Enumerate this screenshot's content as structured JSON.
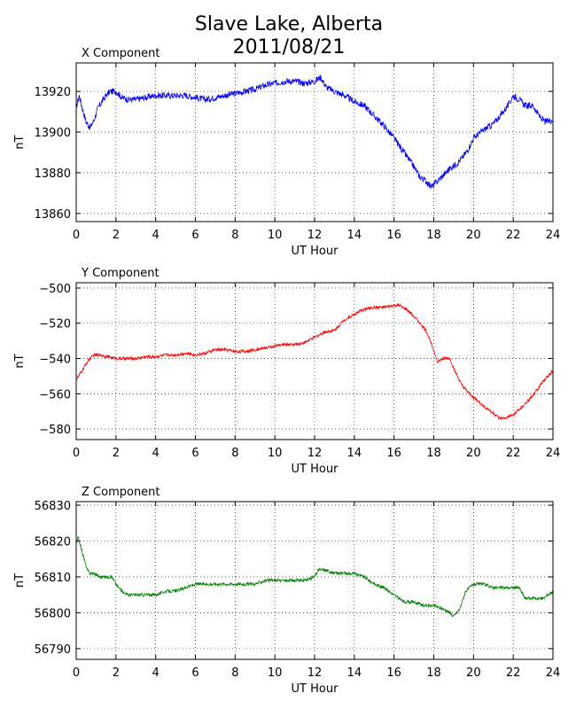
{
  "figure": {
    "title_line1": "Slave Lake, Alberta",
    "title_line2": "2011/08/21"
  },
  "chart_data": [
    {
      "type": "line",
      "title": "X Component",
      "xlabel": "UT Hour",
      "ylabel": "nT",
      "xlim": [
        0,
        24
      ],
      "ylim": [
        13856,
        13934
      ],
      "xticks": [
        0,
        2,
        4,
        6,
        8,
        10,
        12,
        14,
        16,
        18,
        20,
        22,
        24
      ],
      "yticks": [
        13860,
        13880,
        13900,
        13920
      ],
      "grid": true,
      "color": "#0000ff",
      "noise": 1.6,
      "series": [
        {
          "x": [
            0,
            0.15,
            0.3,
            0.5,
            0.7,
            0.9,
            1.1,
            1.3,
            1.5,
            1.7,
            2.0,
            2.3,
            2.6,
            3.0,
            3.5,
            4.0,
            4.5,
            5.0,
            5.5,
            6.0,
            6.5,
            7.0,
            7.5,
            8.0,
            8.5,
            9.0,
            9.5,
            10.0,
            10.5,
            11.0,
            11.5,
            12.0,
            12.3,
            12.6,
            13.0,
            13.5,
            14.0,
            14.5,
            15.0,
            15.5,
            16.0,
            16.5,
            17.0,
            17.3,
            17.6,
            17.9,
            18.2,
            18.5,
            18.8,
            19.1,
            19.4,
            19.7,
            20.0,
            20.5,
            21.0,
            21.5,
            21.8,
            22.0,
            22.3,
            22.6,
            23.0,
            23.3,
            23.6,
            24.0
          ],
          "values": [
            13912,
            13918,
            13912,
            13905,
            13902,
            13906,
            13912,
            13915,
            13918,
            13920,
            13920,
            13917,
            13916,
            13916,
            13917,
            13918,
            13918,
            13918,
            13918,
            13917,
            13916,
            13917,
            13918,
            13919,
            13920,
            13921,
            13923,
            13924,
            13925,
            13925,
            13924,
            13925,
            13927,
            13922,
            13920,
            13918,
            13915,
            13913,
            13908,
            13903,
            13897,
            13890,
            13883,
            13878,
            13876,
            13873,
            13876,
            13879,
            13882,
            13884,
            13887,
            13891,
            13897,
            13901,
            13904,
            13910,
            13914,
            13918,
            13916,
            13913,
            13913,
            13908,
            13905,
            13906
          ]
        }
      ]
    },
    {
      "type": "line",
      "title": "Y Component",
      "xlabel": "UT Hour",
      "ylabel": "nT",
      "xlim": [
        0,
        24
      ],
      "ylim": [
        -586,
        -497
      ],
      "xticks": [
        0,
        2,
        4,
        6,
        8,
        10,
        12,
        14,
        16,
        18,
        20,
        22,
        24
      ],
      "yticks": [
        -580,
        -560,
        -540,
        -520,
        -500
      ],
      "grid": true,
      "color": "#ff0000",
      "noise": 0.9,
      "series": [
        {
          "x": [
            0,
            0.3,
            0.6,
            0.9,
            1.2,
            1.6,
            2.0,
            2.5,
            3.0,
            3.5,
            4.0,
            4.5,
            5.0,
            5.5,
            6.0,
            6.5,
            7.0,
            7.5,
            8.0,
            8.5,
            9.0,
            9.5,
            10.0,
            10.5,
            11.0,
            11.5,
            12.0,
            12.5,
            13.0,
            13.5,
            14.0,
            14.5,
            15.0,
            15.5,
            16.0,
            16.3,
            16.6,
            17.0,
            17.3,
            17.6,
            17.9,
            18.2,
            18.5,
            18.8,
            19.1,
            19.4,
            19.7,
            20.0,
            20.5,
            21.0,
            21.3,
            21.6,
            22.0,
            22.5,
            23.0,
            23.5,
            24.0
          ],
          "values": [
            -552,
            -547,
            -541,
            -538,
            -538,
            -539,
            -540,
            -540,
            -540,
            -539,
            -539,
            -538,
            -538,
            -537,
            -538,
            -537,
            -535,
            -535,
            -536,
            -536,
            -535,
            -534,
            -533,
            -532,
            -532,
            -531,
            -528,
            -525,
            -524,
            -518,
            -515,
            -512,
            -511,
            -511,
            -510,
            -510,
            -512,
            -516,
            -520,
            -524,
            -532,
            -542,
            -540,
            -540,
            -548,
            -555,
            -559,
            -562,
            -567,
            -571,
            -574,
            -574,
            -572,
            -567,
            -561,
            -553,
            -547
          ]
        }
      ]
    },
    {
      "type": "line",
      "title": "Z Component",
      "xlabel": "UT Hour",
      "ylabel": "nT",
      "xlim": [
        0,
        24
      ],
      "ylim": [
        56787,
        56831
      ],
      "xticks": [
        0,
        2,
        4,
        6,
        8,
        10,
        12,
        14,
        16,
        18,
        20,
        22,
        24
      ],
      "yticks": [
        56790,
        56800,
        56810,
        56820,
        56830
      ],
      "grid": true,
      "color": "#008000",
      "noise": 0.45,
      "series": [
        {
          "x": [
            0,
            0.1,
            0.25,
            0.4,
            0.55,
            0.7,
            0.9,
            1.2,
            1.5,
            1.8,
            2.0,
            2.3,
            2.6,
            3.0,
            3.5,
            4.0,
            4.5,
            5.0,
            5.5,
            6.0,
            6.5,
            7.0,
            7.5,
            8.0,
            8.5,
            9.0,
            9.5,
            10.0,
            10.5,
            11.0,
            11.5,
            12.0,
            12.2,
            12.5,
            13.0,
            13.5,
            14.0,
            14.5,
            15.0,
            15.5,
            16.0,
            16.5,
            17.0,
            17.5,
            18.0,
            18.5,
            18.8,
            19.0,
            19.3,
            19.6,
            20.0,
            20.5,
            21.0,
            21.5,
            22.0,
            22.3,
            22.6,
            23.0,
            23.5,
            24.0
          ],
          "values": [
            56819,
            56821,
            56818,
            56815,
            56812,
            56811,
            56811,
            56810,
            56810,
            56810,
            56808,
            56806,
            56805,
            56805,
            56805,
            56805,
            56806,
            56806,
            56807,
            56808,
            56808,
            56808,
            56808,
            56808,
            56808,
            56808,
            56809,
            56809,
            56809,
            56809,
            56809,
            56810,
            56812,
            56812,
            56811,
            56811,
            56811,
            56810,
            56808,
            56807,
            56805,
            56803,
            56803,
            56802,
            56802,
            56801,
            56800,
            56799,
            56801,
            56806,
            56808,
            56808,
            56807,
            56807,
            56807,
            56807,
            56804,
            56804,
            56804,
            56806
          ]
        }
      ]
    }
  ]
}
